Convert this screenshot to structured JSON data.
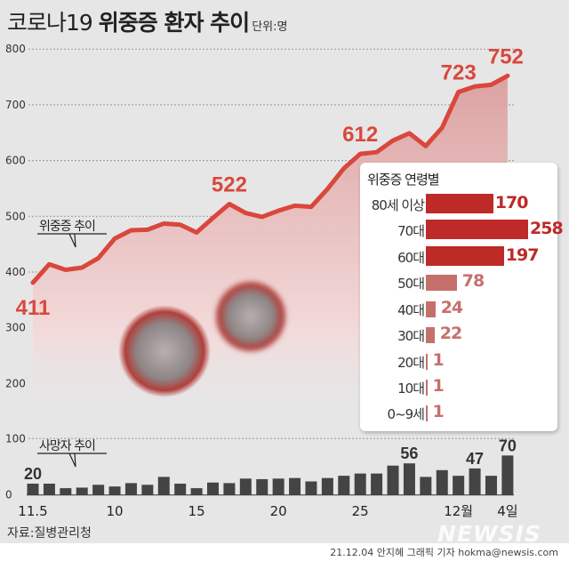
{
  "header": {
    "title_light": "코로나19",
    "title_bold": "위중증 환자 추이",
    "unit": "단위:명"
  },
  "colors": {
    "line": "#d9473d",
    "area_top": "#dca2a2",
    "bar": "#444444",
    "panel_bar_high": "#be2a27",
    "panel_bar_low": "#c6706b",
    "label_red": "#d9473d"
  },
  "chart_data": [
    {
      "type": "area",
      "title": "위중증 추이",
      "x": [
        "11.5",
        "11.6",
        "11.7",
        "11.8",
        "11.9",
        "11.10",
        "11.11",
        "11.12",
        "11.13",
        "11.14",
        "11.15",
        "11.16",
        "11.17",
        "11.18",
        "11.19",
        "11.20",
        "11.21",
        "11.22",
        "11.23",
        "11.24",
        "11.25",
        "11.26",
        "11.27",
        "11.28",
        "11.29",
        "11.30",
        "12.1",
        "12.2",
        "12.3",
        "12.4"
      ],
      "values": [
        411,
        414,
        404,
        408,
        425,
        460,
        475,
        476,
        487,
        485,
        471,
        497,
        522,
        506,
        499,
        510,
        519,
        517,
        549,
        586,
        612,
        615,
        636,
        649,
        626,
        659,
        723,
        733,
        736,
        752
      ],
      "data_labels": [
        {
          "index": 0,
          "text": "411"
        },
        {
          "index": 12,
          "text": "522"
        },
        {
          "index": 20,
          "text": "612"
        },
        {
          "index": 26,
          "text": "723"
        },
        {
          "index": 29,
          "text": "752"
        }
      ],
      "yticks": [
        "800",
        "700",
        "600",
        "500",
        "400",
        "300",
        "200"
      ],
      "ylim": [
        200,
        800
      ],
      "grid": true
    },
    {
      "type": "bar",
      "title": "사망자 추이",
      "values": [
        20,
        20,
        12,
        13,
        18,
        15,
        21,
        18,
        32,
        20,
        12,
        22,
        21,
        29,
        28,
        29,
        30,
        24,
        30,
        34,
        38,
        38,
        52,
        56,
        32,
        44,
        34,
        47,
        34,
        70
      ],
      "data_labels": [
        {
          "index": 0,
          "text": "20"
        },
        {
          "index": 23,
          "text": "56"
        },
        {
          "index": 27,
          "text": "47"
        },
        {
          "index": 29,
          "text": "70"
        }
      ],
      "yticks": [
        "100",
        "0"
      ],
      "ylim": [
        0,
        100
      ],
      "xtick_labels": [
        {
          "index": 0,
          "text": "11.5"
        },
        {
          "index": 5,
          "text": "10"
        },
        {
          "index": 10,
          "text": "15"
        },
        {
          "index": 15,
          "text": "20"
        },
        {
          "index": 20,
          "text": "25"
        },
        {
          "index": 26,
          "text": "12월"
        },
        {
          "index": 29,
          "text": "4일"
        }
      ]
    },
    {
      "type": "bar",
      "title": "위중증 연령별",
      "categories": [
        "80세 이상",
        "70대",
        "60대",
        "50대",
        "40대",
        "30대",
        "20대",
        "10대",
        "0~9세"
      ],
      "values": [
        170,
        258,
        197,
        78,
        24,
        22,
        1,
        1,
        1
      ],
      "labels": [
        "170",
        "258",
        "197",
        "78",
        "24",
        "22",
        "1",
        "1",
        "1"
      ]
    }
  ],
  "footer": {
    "source": "자료:질병관리청",
    "credit": "21.12.04 안지혜 그래픽 기자 hokma@newsis.com",
    "logo": "NEWSIS"
  }
}
